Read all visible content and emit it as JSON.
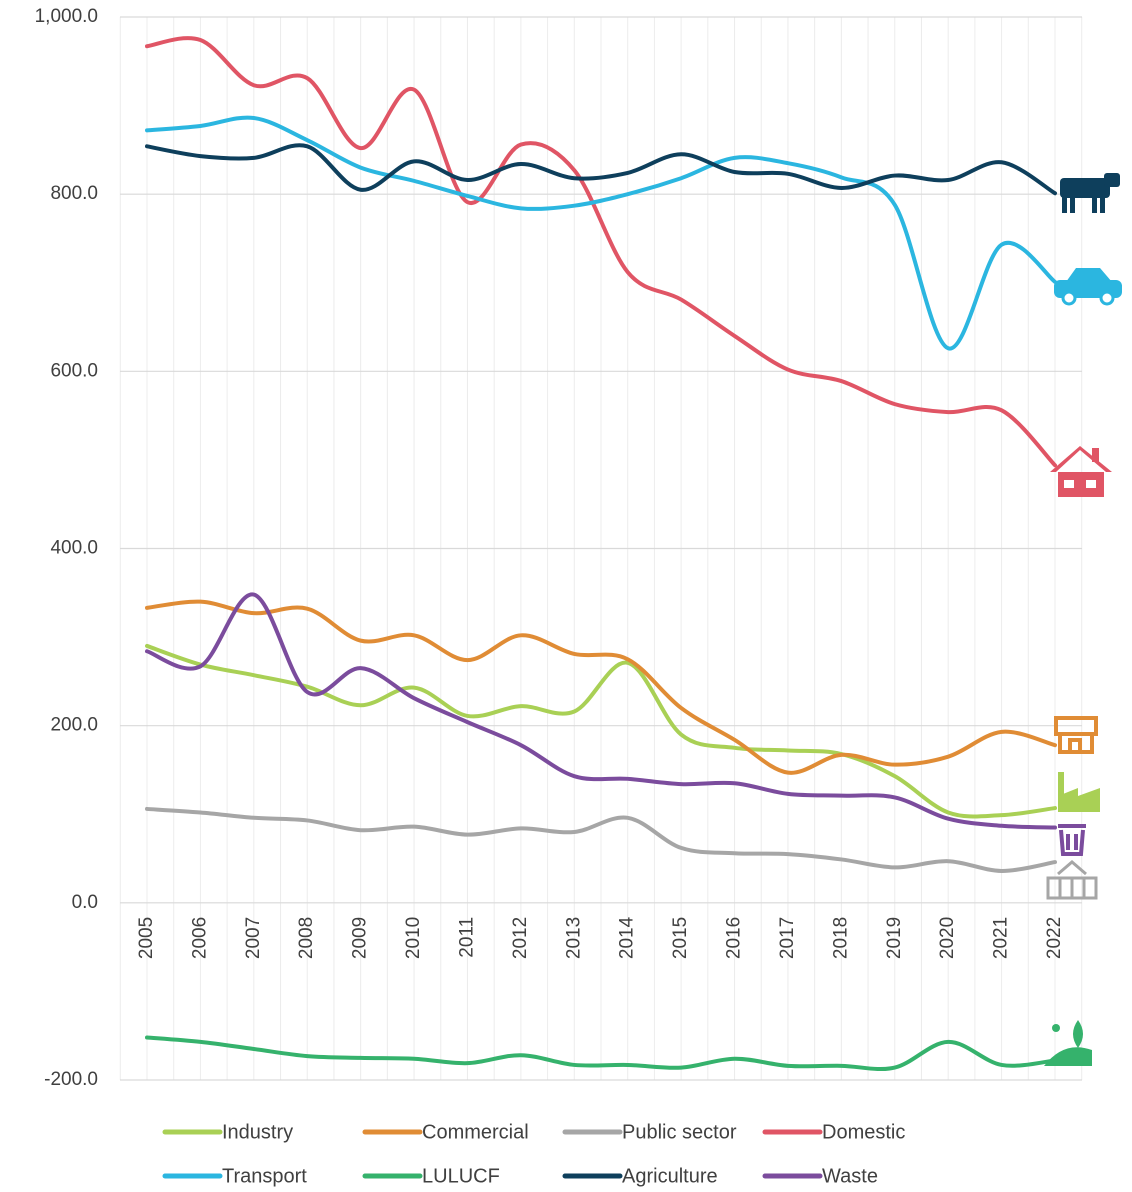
{
  "chart_data": {
    "type": "line",
    "categories": [
      "2005",
      "2006",
      "2007",
      "2008",
      "2009",
      "2010",
      "2011",
      "2012",
      "2013",
      "2014",
      "2015",
      "2016",
      "2017",
      "2018",
      "2019",
      "2020",
      "2021",
      "2022"
    ],
    "series": [
      {
        "name": "Industry",
        "color": "#a9d055",
        "values": [
          290,
          269,
          257,
          244,
          223,
          243,
          211,
          222,
          216,
          271,
          190,
          175,
          172,
          168,
          143,
          102,
          99,
          107
        ]
      },
      {
        "name": "Commercial",
        "color": "#e08c35",
        "values": [
          333,
          340,
          327,
          332,
          296,
          302,
          274,
          302,
          281,
          275,
          220,
          184,
          147,
          167,
          156,
          165,
          193,
          178
        ]
      },
      {
        "name": "Public sector",
        "color": "#a6a6a6",
        "values": [
          106,
          102,
          96,
          93,
          82,
          86,
          77,
          84,
          80,
          96,
          62,
          56,
          55,
          49,
          40,
          47,
          36,
          46
        ]
      },
      {
        "name": "Domestic",
        "color": "#e05565",
        "values": [
          967,
          974,
          923,
          931,
          852,
          918,
          791,
          856,
          827,
          712,
          681,
          640,
          602,
          589,
          563,
          554,
          556,
          494
        ]
      },
      {
        "name": "Transport",
        "color": "#2bb6e0",
        "values": [
          872,
          877,
          886,
          861,
          830,
          815,
          798,
          784,
          787,
          800,
          818,
          841,
          835,
          819,
          788,
          626,
          743,
          701
        ]
      },
      {
        "name": "LULUCF",
        "color": "#35b26c",
        "values": [
          -152,
          -157,
          -165,
          -173,
          -175,
          -176,
          -181,
          -172,
          -183,
          -183,
          -186,
          -176,
          -184,
          -184,
          -186,
          -157,
          -183,
          -178
        ]
      },
      {
        "name": "Agriculture",
        "color": "#0e3f5c",
        "values": [
          854,
          843,
          841,
          854,
          805,
          837,
          816,
          834,
          818,
          824,
          845,
          825,
          823,
          807,
          821,
          816,
          836,
          801
        ]
      },
      {
        "name": "Waste",
        "color": "#7b4c9d",
        "values": [
          284,
          267,
          348,
          238,
          265,
          231,
          204,
          178,
          143,
          140,
          134,
          135,
          123,
          121,
          119,
          95,
          87,
          85
        ]
      }
    ],
    "ylim": [
      -200,
      1000
    ],
    "yticks": [
      {
        "value": -200,
        "label": "-200.0"
      },
      {
        "value": 0,
        "label": "0.0"
      },
      {
        "value": 200,
        "label": "200.0"
      },
      {
        "value": 400,
        "label": "400.0"
      },
      {
        "value": 600,
        "label": "600.0"
      },
      {
        "value": 800,
        "label": "800.0"
      },
      {
        "value": 1000,
        "label": "1,000.0"
      }
    ],
    "grid": true,
    "smooth": true,
    "legend": "bottom"
  }
}
